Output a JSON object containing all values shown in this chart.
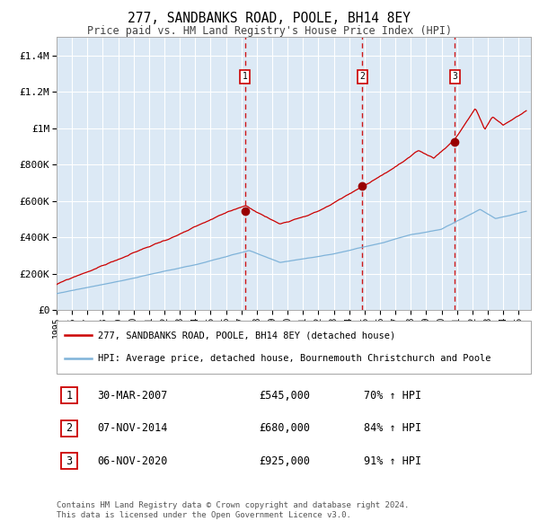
{
  "title": "277, SANDBANKS ROAD, POOLE, BH14 8EY",
  "subtitle": "Price paid vs. HM Land Registry's House Price Index (HPI)",
  "background_color": "#ffffff",
  "plot_bg_color": "#dce9f5",
  "grid_color": "#ffffff",
  "red_line_color": "#cc0000",
  "blue_line_color": "#7fb3d9",
  "ylim": [
    0,
    1500000
  ],
  "yticks": [
    0,
    200000,
    400000,
    600000,
    800000,
    1000000,
    1200000,
    1400000
  ],
  "ytick_labels": [
    "£0",
    "£200K",
    "£400K",
    "£600K",
    "£800K",
    "£1M",
    "£1.2M",
    "£1.4M"
  ],
  "xlim_start": 1995.0,
  "xlim_end": 2025.8,
  "xtick_years": [
    1995,
    1996,
    1997,
    1998,
    1999,
    2000,
    2001,
    2002,
    2003,
    2004,
    2005,
    2006,
    2007,
    2008,
    2009,
    2010,
    2011,
    2012,
    2013,
    2014,
    2015,
    2016,
    2017,
    2018,
    2019,
    2020,
    2021,
    2022,
    2023,
    2024,
    2025
  ],
  "sale_dates": [
    2007.24,
    2014.85,
    2020.85
  ],
  "sale_prices": [
    545000,
    680000,
    925000
  ],
  "sale_labels": [
    "1",
    "2",
    "3"
  ],
  "legend_red_label": "277, SANDBANKS ROAD, POOLE, BH14 8EY (detached house)",
  "legend_blue_label": "HPI: Average price, detached house, Bournemouth Christchurch and Poole",
  "table_rows": [
    [
      "1",
      "30-MAR-2007",
      "£545,000",
      "70% ↑ HPI"
    ],
    [
      "2",
      "07-NOV-2014",
      "£680,000",
      "84% ↑ HPI"
    ],
    [
      "3",
      "06-NOV-2020",
      "£925,000",
      "91% ↑ HPI"
    ]
  ],
  "footer_text": "Contains HM Land Registry data © Crown copyright and database right 2024.\nThis data is licensed under the Open Government Licence v3.0.",
  "dashed_line_color": "#cc0000",
  "marker_color": "#990000"
}
